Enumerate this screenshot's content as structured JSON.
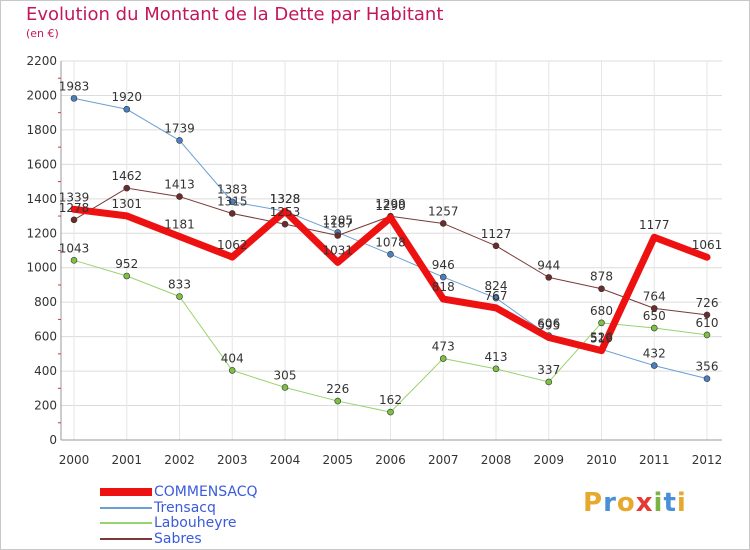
{
  "header": {
    "title": "Evolution du Montant de la Dette par Habitant",
    "unit": "(en €)"
  },
  "logo": {
    "text": "Proxiti",
    "letters": [
      "P",
      "r",
      "o",
      "x",
      "i",
      "t",
      "i"
    ],
    "colors": [
      "#e6a92e",
      "#4a90d9",
      "#e6a92e",
      "#e53935",
      "#7cb342",
      "#4a90d9",
      "#e6a92e"
    ]
  },
  "chart_data": {
    "type": "line",
    "title": "Evolution du Montant de la Dette par Habitant",
    "subtitle": "(en €)",
    "xlabel": "",
    "ylabel": "",
    "ylim": [
      0,
      2200
    ],
    "yticks": [
      0,
      200,
      400,
      600,
      800,
      1000,
      1200,
      1400,
      1600,
      1800,
      2000,
      2200
    ],
    "grid": true,
    "legend": "bottom-left",
    "x": [
      "2000",
      "2001",
      "2002",
      "2003",
      "2004",
      "2005",
      "2006",
      "2007",
      "2008",
      "2009",
      "2010",
      "2011",
      "2012"
    ],
    "series": [
      {
        "name": "Trensacq",
        "color": "#6a9fd4",
        "width": 1,
        "marker": "#4a7fc1",
        "values": [
          1983,
          1920,
          1739,
          1383,
          1328,
          1205,
          1078,
          946,
          824,
          606,
          526,
          432,
          356
        ],
        "labels": [
          "1983",
          "1920",
          "1739",
          "1383",
          "1328",
          "1205",
          "1078",
          "946",
          "824",
          "606",
          "526",
          "432",
          "356"
        ]
      },
      {
        "name": "Labouheyre",
        "color": "#98d36e",
        "width": 1,
        "marker": "#7cc142",
        "values": [
          1043,
          952,
          833,
          404,
          305,
          226,
          162,
          473,
          413,
          337,
          680,
          650,
          610
        ],
        "labels": [
          "1043",
          "952",
          "833",
          "404",
          "305",
          "226",
          "162",
          "473",
          "413",
          "337",
          "680",
          "650",
          "610"
        ]
      },
      {
        "name": "Sabres",
        "color": "#7a3a3a",
        "width": 1,
        "marker": "#6d2b2b",
        "values": [
          1278,
          1462,
          1413,
          1315,
          1253,
          1187,
          1299,
          1257,
          1127,
          944,
          878,
          764,
          726
        ],
        "labels": [
          "1278",
          "1462",
          "1413",
          "1315",
          "1253",
          "1187",
          "1299",
          "1257",
          "1127",
          "944",
          "878",
          "764",
          "726"
        ]
      },
      {
        "name": "COMMENSACQ",
        "color": "#ee1111",
        "width": 7,
        "marker": "#ee1111",
        "values": [
          1339,
          1301,
          1181,
          1062,
          1328,
          1031,
          1290,
          818,
          767,
          595,
          519,
          1177,
          1061
        ],
        "labels": [
          "1339",
          "1301",
          "1181",
          "1062",
          "1328",
          "1031",
          "1290",
          "818",
          "767",
          "595",
          "519",
          "1177",
          "1061"
        ]
      }
    ]
  },
  "legend": [
    {
      "name": "COMMENSACQ",
      "color": "#ee1111",
      "thick": true
    },
    {
      "name": "Trensacq",
      "color": "#6a9fd4",
      "thick": false
    },
    {
      "name": "Labouheyre",
      "color": "#98d36e",
      "thick": false
    },
    {
      "name": "Sabres",
      "color": "#7a3a3a",
      "thick": false
    }
  ]
}
